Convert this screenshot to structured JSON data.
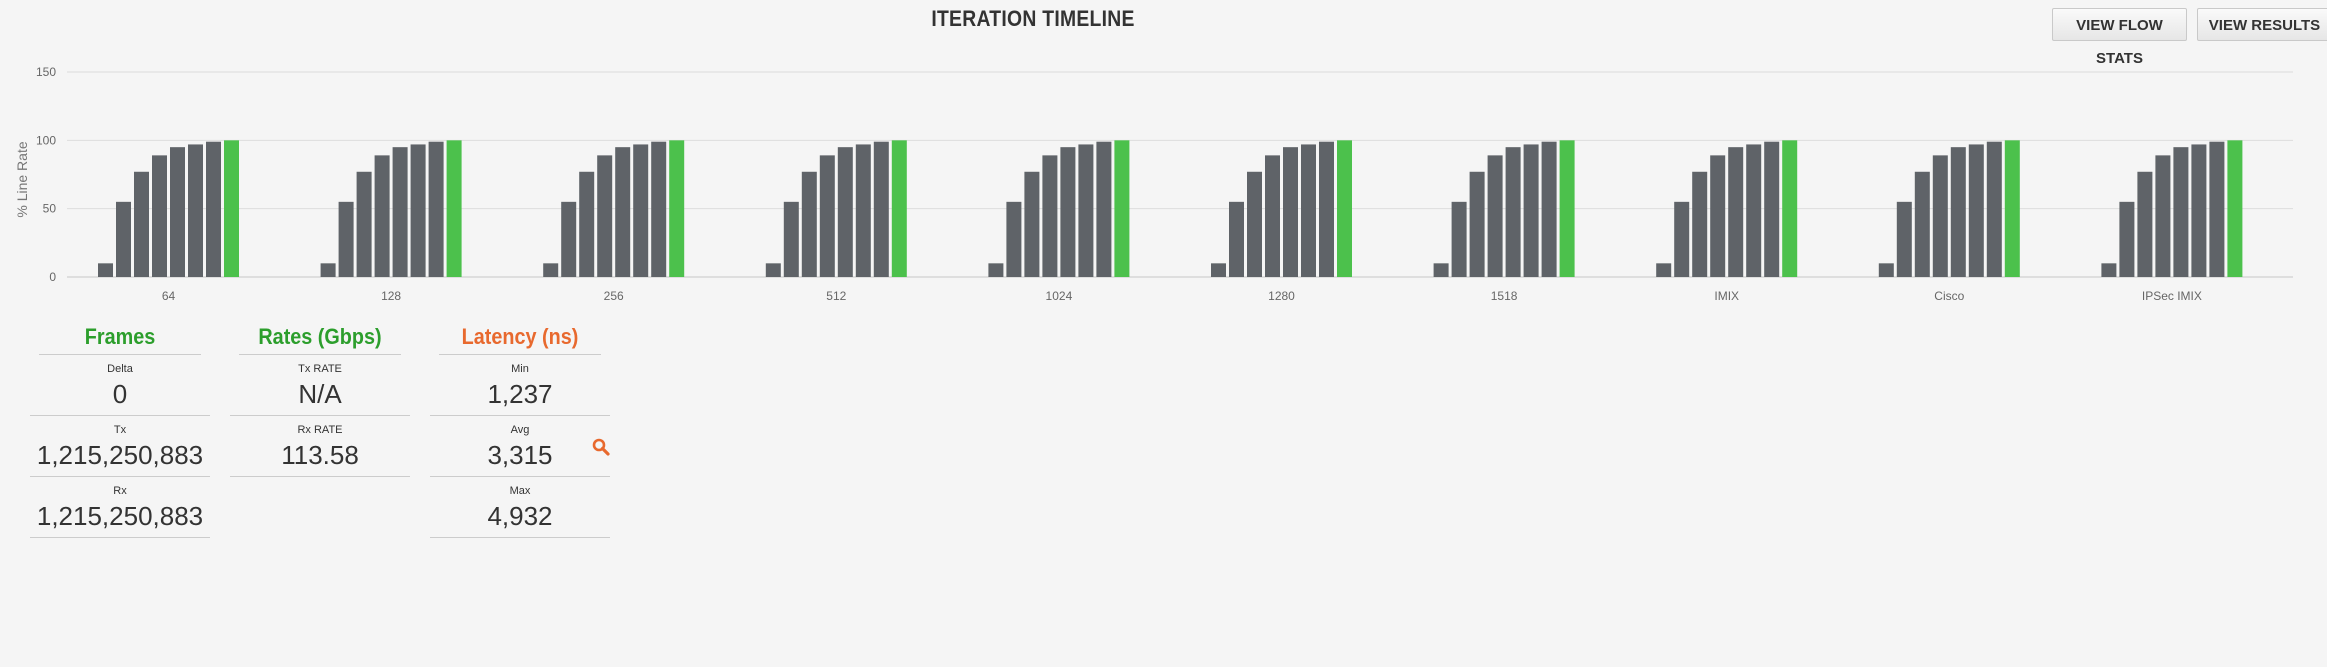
{
  "header": {
    "title": "ITERATION TIMELINE",
    "view_flow_stats_label": "VIEW FLOW STATS",
    "view_results_label": "VIEW RESULTS"
  },
  "colors": {
    "bar": "#5f6368",
    "bar_final": "#4cc14c",
    "frames_heading": "#2c9e2c",
    "rates_heading": "#2c9e2c",
    "latency_heading": "#e8692e",
    "gridline": "#dcdcdc"
  },
  "chart_data": {
    "type": "bar",
    "title": "ITERATION TIMELINE",
    "ylabel": "% Line Rate",
    "xlabel": "",
    "ylim": [
      0,
      150
    ],
    "yticks": [
      0,
      50,
      100,
      150
    ],
    "grid": true,
    "categories": [
      "64",
      "128",
      "256",
      "512",
      "1024",
      "1280",
      "1518",
      "IMIX",
      "Cisco",
      "IPSec IMIX"
    ],
    "groups": [
      {
        "category": "64",
        "values": [
          10,
          55,
          77,
          89,
          95,
          97,
          99,
          100
        ],
        "final_highlighted": true
      },
      {
        "category": "128",
        "values": [
          10,
          55,
          77,
          89,
          95,
          97,
          99,
          100
        ],
        "final_highlighted": true
      },
      {
        "category": "256",
        "values": [
          10,
          55,
          77,
          89,
          95,
          97,
          99,
          100
        ],
        "final_highlighted": true
      },
      {
        "category": "512",
        "values": [
          10,
          55,
          77,
          89,
          95,
          97,
          99,
          100
        ],
        "final_highlighted": true
      },
      {
        "category": "1024",
        "values": [
          10,
          55,
          77,
          89,
          95,
          97,
          99,
          100
        ],
        "final_highlighted": true
      },
      {
        "category": "1280",
        "values": [
          10,
          55,
          77,
          89,
          95,
          97,
          99,
          100
        ],
        "final_highlighted": true
      },
      {
        "category": "1518",
        "values": [
          10,
          55,
          77,
          89,
          95,
          97,
          99,
          100
        ],
        "final_highlighted": true
      },
      {
        "category": "IMIX",
        "values": [
          10,
          55,
          77,
          89,
          95,
          97,
          99,
          100
        ],
        "final_highlighted": true
      },
      {
        "category": "Cisco",
        "values": [
          10,
          55,
          77,
          89,
          95,
          97,
          99,
          100
        ],
        "final_highlighted": true
      },
      {
        "category": "IPSec IMIX",
        "values": [
          10,
          55,
          77,
          89,
          95,
          97,
          99,
          100
        ],
        "final_highlighted": true
      }
    ]
  },
  "stats": {
    "frames": {
      "heading": "Frames",
      "delta_label": "Delta",
      "delta_value": "0",
      "tx_label": "Tx",
      "tx_value": "1,215,250,883",
      "rx_label": "Rx",
      "rx_value": "1,215,250,883"
    },
    "rates": {
      "heading": "Rates (Gbps)",
      "tx_rate_label": "Tx RATE",
      "tx_rate_value": "N/A",
      "rx_rate_label": "Rx RATE",
      "rx_rate_value": "113.58"
    },
    "latency": {
      "heading": "Latency (ns)",
      "min_label": "Min",
      "min_value": "1,237",
      "avg_label": "Avg",
      "avg_value": "3,315",
      "max_label": "Max",
      "max_value": "4,932",
      "zoom_icon": "search-icon"
    }
  }
}
